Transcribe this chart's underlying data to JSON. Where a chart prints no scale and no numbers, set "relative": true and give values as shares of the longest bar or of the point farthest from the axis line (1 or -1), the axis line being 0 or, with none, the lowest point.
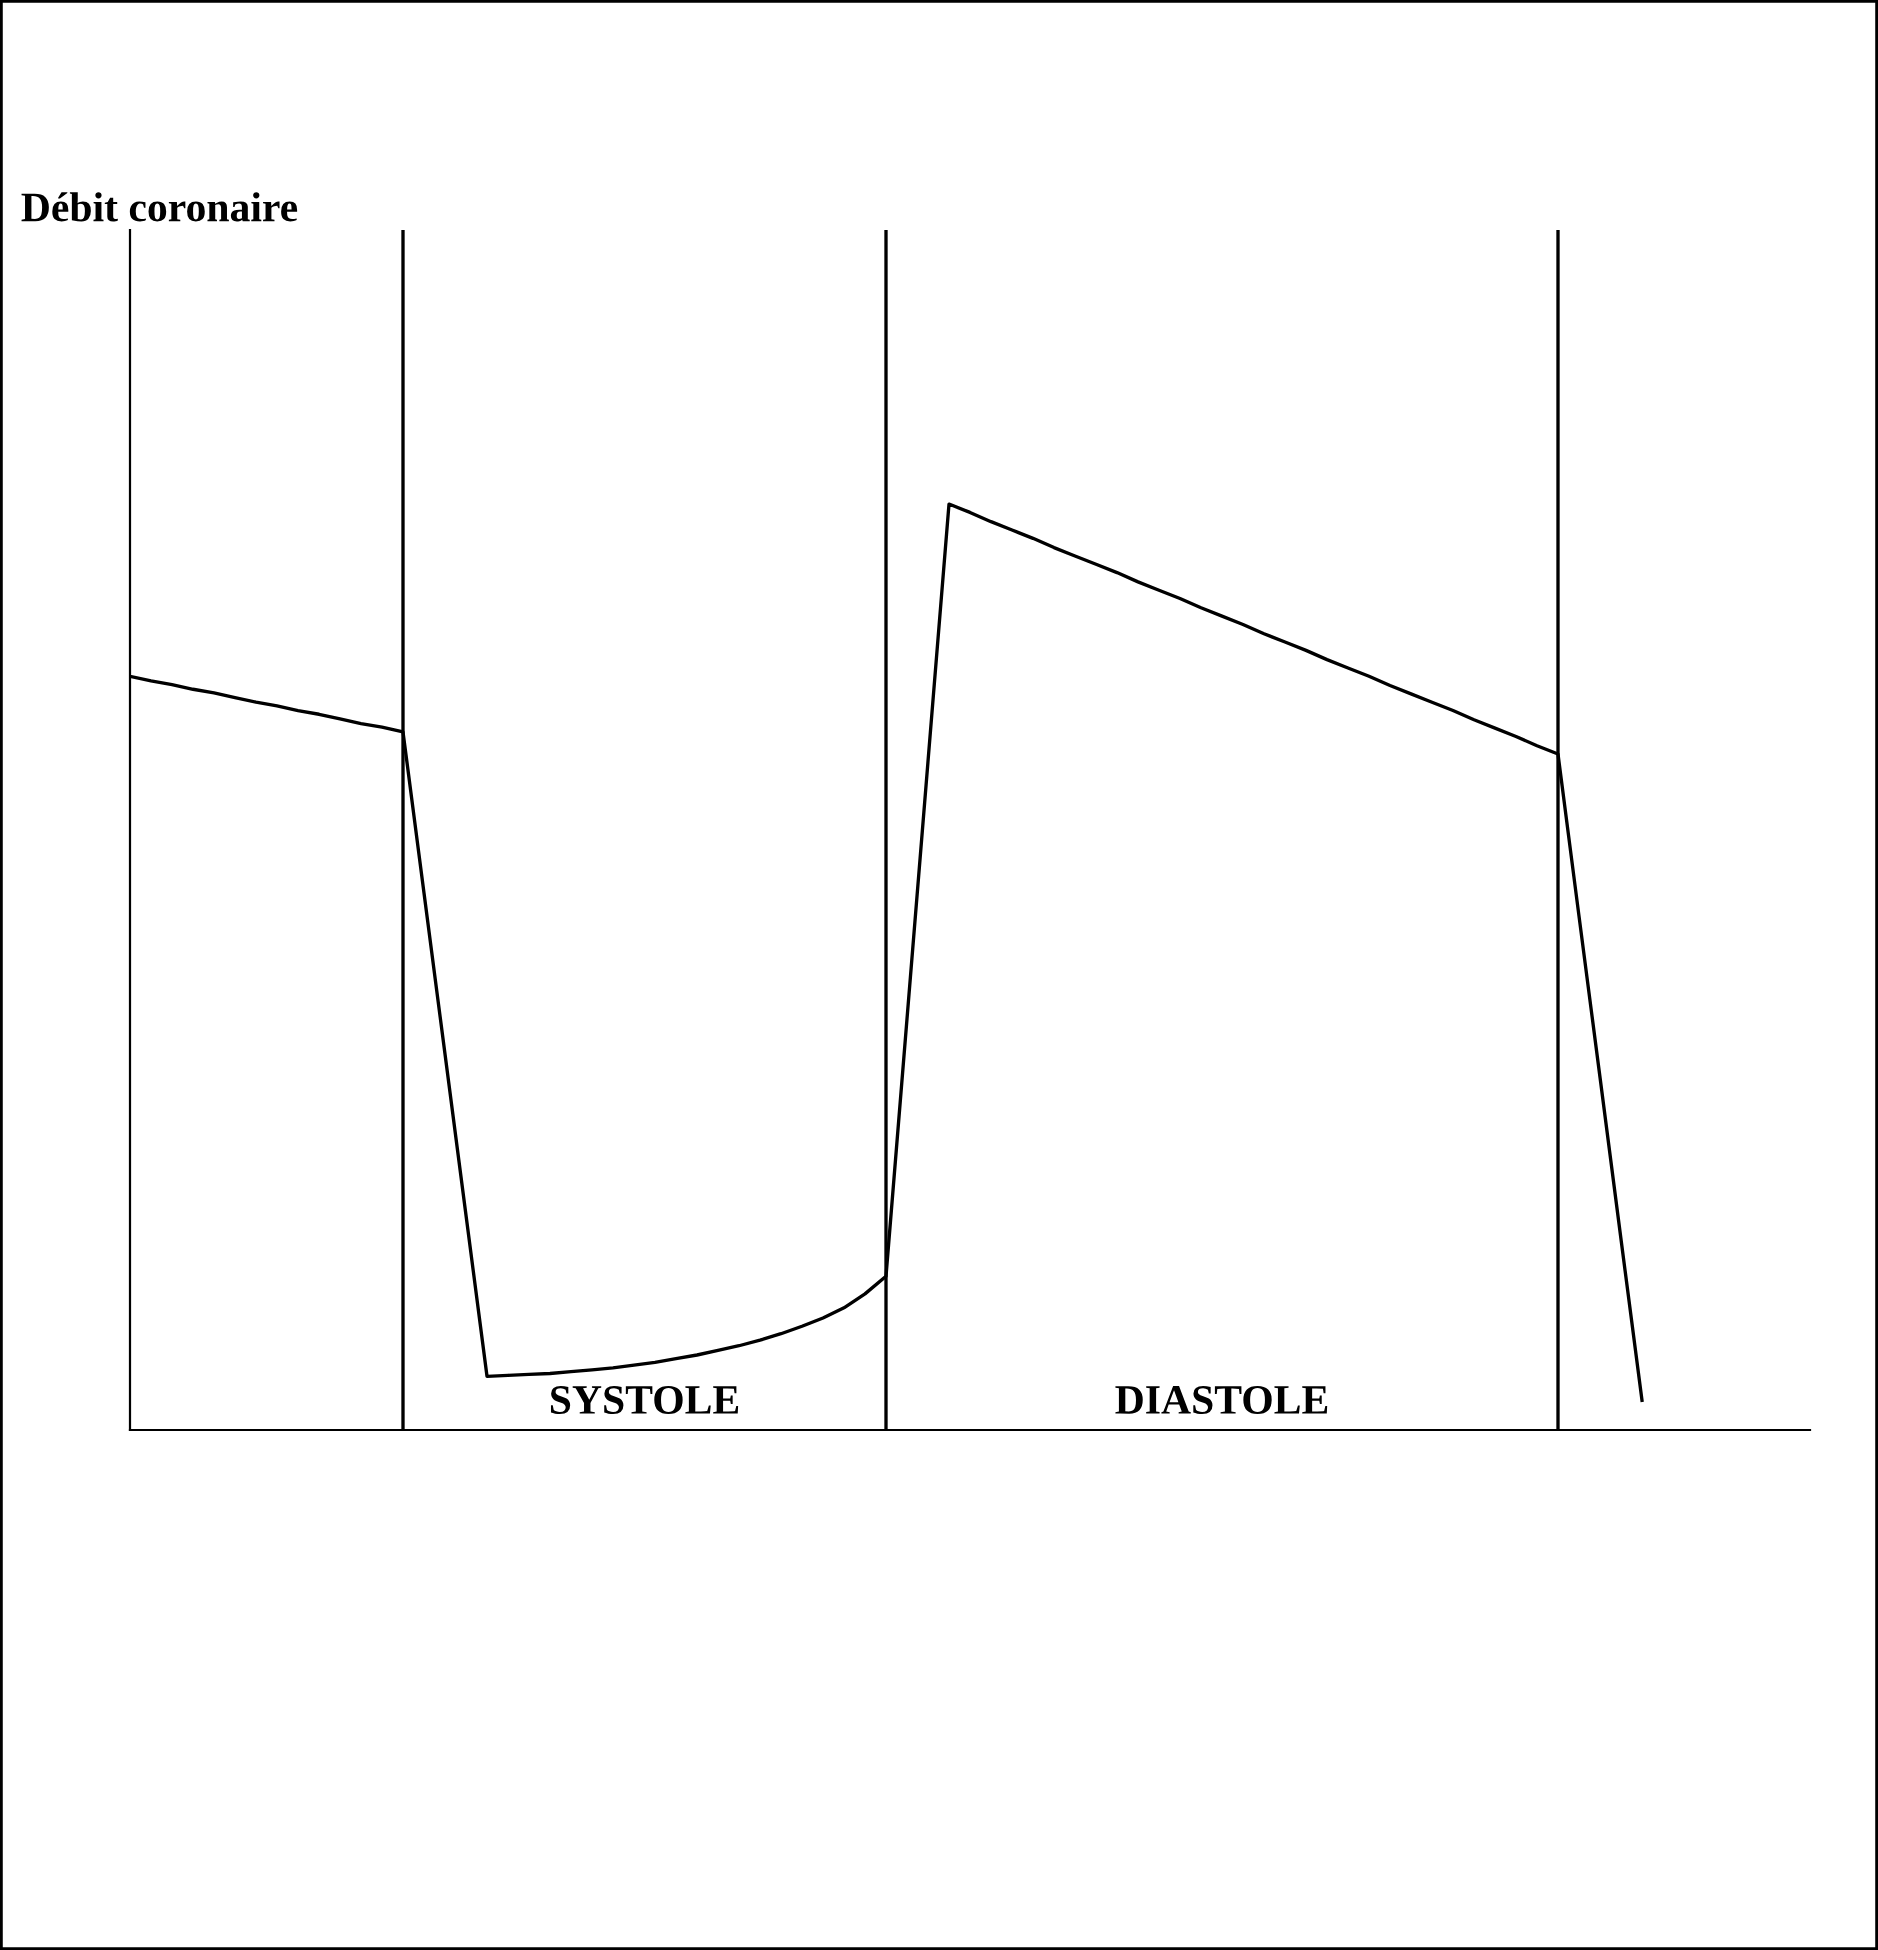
{
  "chart_data": {
    "type": "line",
    "relative": true,
    "grid": "x",
    "categories": [
      null,
      null,
      null,
      null,
      null,
      null,
      null,
      null,
      null,
      null,
      null,
      null,
      null,
      null,
      null,
      null,
      null,
      null,
      null,
      null,
      null,
      null,
      null,
      null,
      null,
      null,
      null,
      null,
      null,
      null,
      null,
      null,
      null,
      null,
      null,
      null,
      null,
      null,
      null,
      null,
      null,
      null,
      null,
      null,
      null,
      null,
      null,
      null,
      null,
      null,
      null,
      null,
      null,
      null,
      null,
      null,
      null,
      null,
      null,
      null,
      null,
      null,
      null,
      null,
      null,
      null,
      null,
      null,
      null,
      null,
      null,
      null,
      null,
      null,
      null,
      null,
      null,
      null,
      null,
      null,
      null
    ],
    "series": [
      {
        "color": "#000000",
        "values": [
          0.814,
          0.809,
          0.805,
          0.8,
          0.796,
          0.791,
          0.786,
          0.782,
          0.777,
          0.773,
          0.768,
          0.763,
          0.759,
          0.754,
          0.58,
          0.406,
          0.232,
          0.058,
          0.059,
          0.06,
          0.061,
          0.063,
          0.065,
          0.067,
          0.07,
          0.073,
          0.077,
          0.081,
          0.086,
          0.091,
          0.097,
          0.104,
          0.112,
          0.121,
          0.132,
          0.147,
          0.166,
          0.444,
          0.722,
          1.0,
          0.991,
          0.981,
          0.972,
          0.963,
          0.953,
          0.944,
          0.935,
          0.926,
          0.916,
          0.907,
          0.898,
          0.888,
          0.879,
          0.87,
          0.86,
          0.851,
          0.842,
          0.832,
          0.823,
          0.814,
          0.804,
          0.795,
          0.786,
          0.777,
          0.767,
          0.758,
          0.749,
          0.739,
          0.73,
          0.555,
          0.381,
          0.206,
          0.032,
          null,
          null,
          null,
          null,
          null,
          null,
          null,
          null
        ]
      }
    ],
    "annotations": [
      "Débit coronaire",
      "SYSTOLE",
      "DIASTOLE"
    ]
  }
}
